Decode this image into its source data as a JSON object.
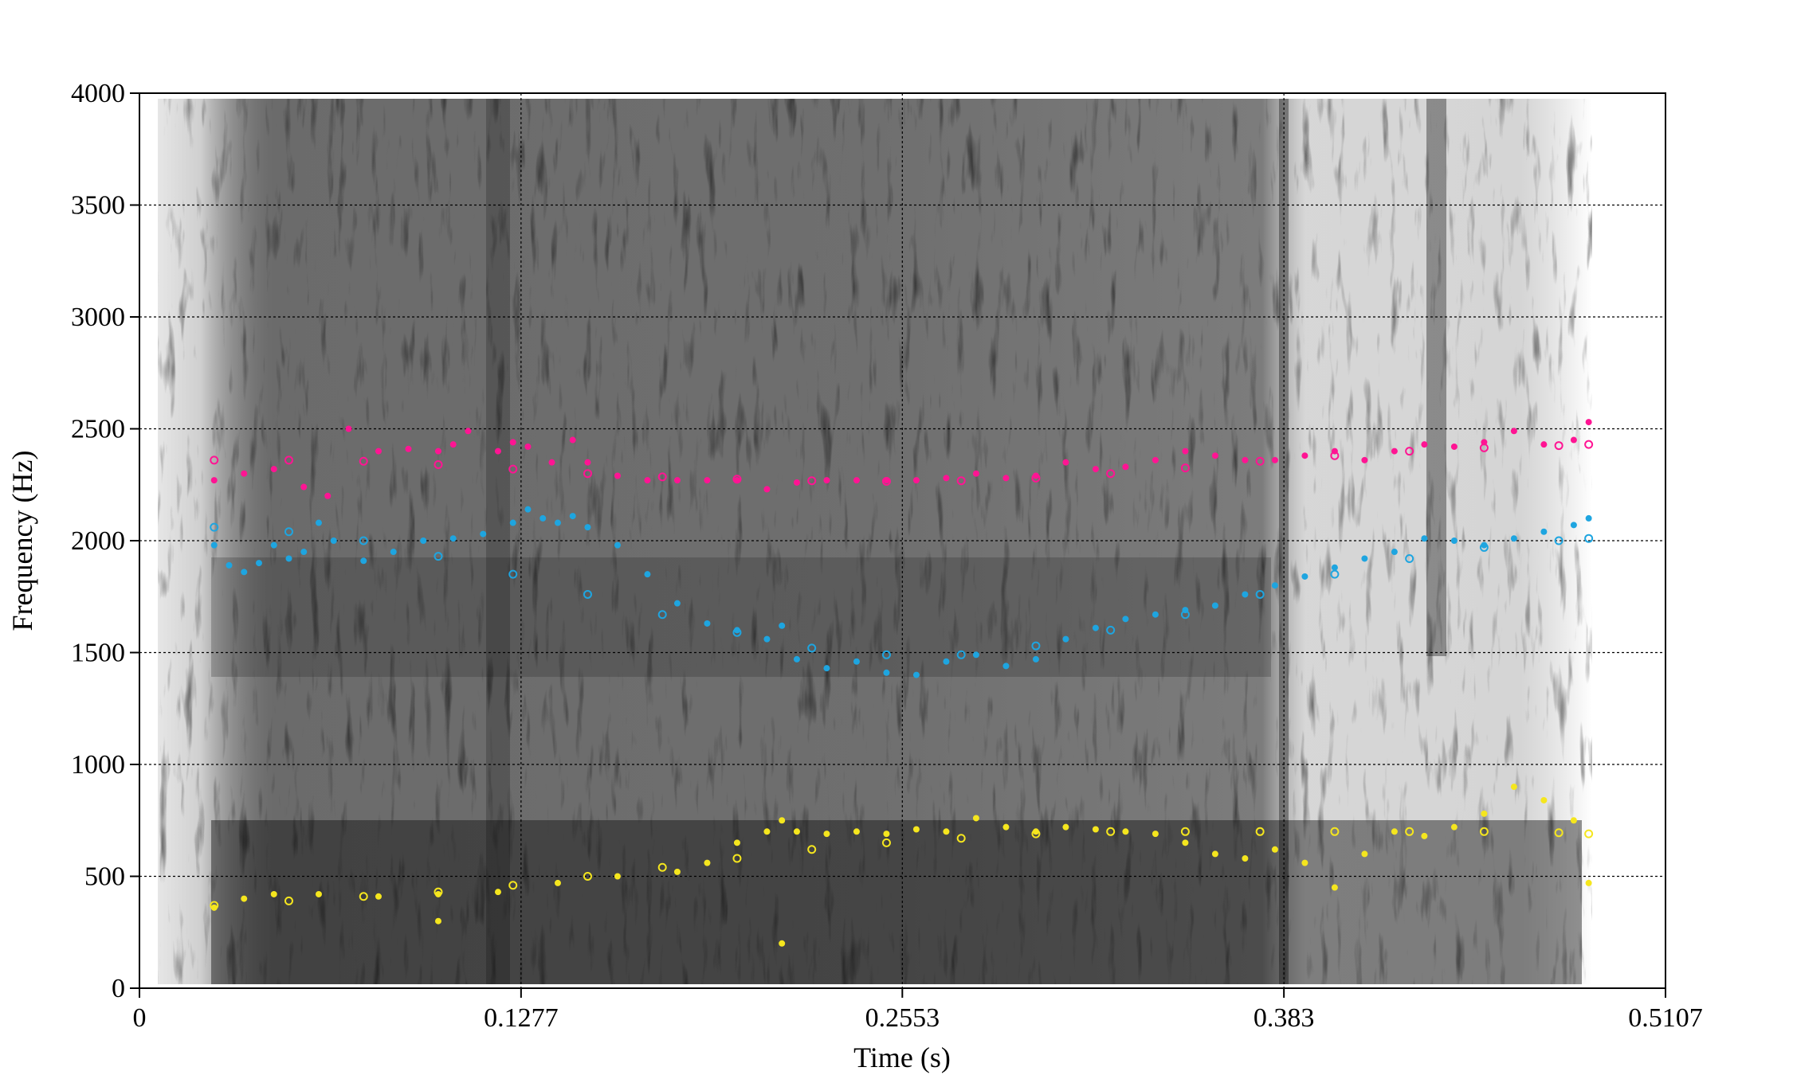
{
  "chart_data": {
    "type": "scatter",
    "title": "",
    "xlabel": "Time (s)",
    "ylabel": "Frequency (Hz)",
    "xlim": [
      0,
      0.5107
    ],
    "ylim": [
      0,
      4000
    ],
    "x_ticks": [
      "0",
      "0.1277",
      "0.2553",
      "0.383",
      "0.5107"
    ],
    "y_ticks": [
      "0",
      "500",
      "1000",
      "1500",
      "2000",
      "2500",
      "3000",
      "3500",
      "4000"
    ],
    "grid": true,
    "background": "grayscale spectrogram",
    "series": [
      {
        "color": "#ff1493",
        "style": "filled-dots",
        "x": [
          0.025,
          0.035,
          0.045,
          0.055,
          0.063,
          0.07,
          0.08,
          0.09,
          0.1,
          0.105,
          0.11,
          0.12,
          0.125,
          0.13,
          0.138,
          0.145,
          0.15,
          0.16,
          0.17,
          0.18,
          0.19,
          0.2,
          0.21,
          0.22,
          0.23,
          0.24,
          0.25,
          0.26,
          0.27,
          0.28,
          0.29,
          0.3,
          0.31,
          0.32,
          0.33,
          0.34,
          0.35,
          0.36,
          0.37,
          0.38,
          0.39,
          0.4,
          0.41,
          0.42,
          0.43,
          0.44,
          0.45,
          0.46,
          0.47,
          0.48,
          0.485
        ],
        "y": [
          2270,
          2300,
          2320,
          2240,
          2200,
          2500,
          2400,
          2410,
          2400,
          2430,
          2490,
          2400,
          2440,
          2420,
          2350,
          2450,
          2350,
          2290,
          2270,
          2270,
          2270,
          2270,
          2230,
          2260,
          2270,
          2270,
          2270,
          2270,
          2280,
          2300,
          2280,
          2290,
          2350,
          2320,
          2330,
          2360,
          2400,
          2380,
          2360,
          2360,
          2380,
          2400,
          2360,
          2400,
          2430,
          2420,
          2440,
          2490,
          2430,
          2450,
          2530
        ]
      },
      {
        "color": "#ff1493",
        "style": "open-circles",
        "x": [
          0.025,
          0.05,
          0.075,
          0.1,
          0.125,
          0.15,
          0.175,
          0.2,
          0.225,
          0.25,
          0.275,
          0.3,
          0.325,
          0.35,
          0.375,
          0.4,
          0.425,
          0.45,
          0.475,
          0.485
        ],
        "y": [
          2360,
          2360,
          2355,
          2340,
          2320,
          2300,
          2285,
          2275,
          2268,
          2265,
          2268,
          2280,
          2300,
          2325,
          2355,
          2380,
          2400,
          2415,
          2425,
          2430
        ]
      },
      {
        "color": "#1ea5e0",
        "style": "filled-dots",
        "x": [
          0.025,
          0.03,
          0.035,
          0.04,
          0.045,
          0.05,
          0.055,
          0.06,
          0.065,
          0.075,
          0.085,
          0.095,
          0.105,
          0.115,
          0.125,
          0.13,
          0.135,
          0.14,
          0.145,
          0.15,
          0.16,
          0.17,
          0.18,
          0.19,
          0.2,
          0.21,
          0.215,
          0.22,
          0.23,
          0.24,
          0.25,
          0.26,
          0.27,
          0.28,
          0.29,
          0.3,
          0.31,
          0.32,
          0.33,
          0.34,
          0.35,
          0.36,
          0.37,
          0.38,
          0.39,
          0.4,
          0.41,
          0.42,
          0.43,
          0.44,
          0.45,
          0.46,
          0.47,
          0.48,
          0.485
        ],
        "y": [
          1980,
          1890,
          1860,
          1900,
          1980,
          1920,
          1950,
          2080,
          2000,
          1910,
          1950,
          2000,
          2010,
          2030,
          2080,
          2140,
          2100,
          2080,
          2110,
          2060,
          1980,
          1850,
          1720,
          1630,
          1600,
          1560,
          1620,
          1470,
          1430,
          1460,
          1410,
          1400,
          1460,
          1490,
          1440,
          1470,
          1560,
          1610,
          1650,
          1670,
          1690,
          1710,
          1760,
          1800,
          1840,
          1880,
          1920,
          1950,
          2010,
          2000,
          1980,
          2010,
          2040,
          2070,
          2100
        ]
      },
      {
        "color": "#1ea5e0",
        "style": "open-circles",
        "x": [
          0.025,
          0.05,
          0.075,
          0.1,
          0.125,
          0.15,
          0.175,
          0.2,
          0.225,
          0.25,
          0.275,
          0.3,
          0.325,
          0.35,
          0.375,
          0.4,
          0.425,
          0.45,
          0.475,
          0.485
        ],
        "y": [
          2060,
          2040,
          2000,
          1930,
          1850,
          1760,
          1670,
          1590,
          1520,
          1490,
          1490,
          1530,
          1600,
          1670,
          1760,
          1850,
          1920,
          1970,
          2000,
          2010
        ]
      },
      {
        "color": "#f5e61e",
        "style": "filled-dots",
        "x": [
          0.025,
          0.035,
          0.045,
          0.06,
          0.08,
          0.1,
          0.12,
          0.14,
          0.16,
          0.18,
          0.19,
          0.2,
          0.21,
          0.215,
          0.22,
          0.23,
          0.24,
          0.25,
          0.26,
          0.27,
          0.28,
          0.29,
          0.3,
          0.31,
          0.32,
          0.33,
          0.34,
          0.35,
          0.36,
          0.37,
          0.38,
          0.39,
          0.4,
          0.41,
          0.42,
          0.43,
          0.44,
          0.45,
          0.46,
          0.47,
          0.48,
          0.485,
          0.1,
          0.215
        ],
        "y": [
          360,
          400,
          420,
          420,
          410,
          420,
          430,
          470,
          500,
          520,
          560,
          650,
          700,
          750,
          700,
          690,
          700,
          690,
          710,
          700,
          760,
          720,
          700,
          720,
          710,
          700,
          690,
          650,
          600,
          580,
          620,
          560,
          450,
          600,
          700,
          680,
          720,
          780,
          900,
          840,
          750,
          470,
          300,
          200
        ]
      },
      {
        "color": "#f5e61e",
        "style": "open-circles",
        "x": [
          0.025,
          0.05,
          0.075,
          0.1,
          0.125,
          0.15,
          0.175,
          0.2,
          0.225,
          0.25,
          0.275,
          0.3,
          0.325,
          0.35,
          0.375,
          0.4,
          0.425,
          0.45,
          0.475,
          0.485
        ],
        "y": [
          370,
          390,
          410,
          430,
          460,
          500,
          540,
          580,
          620,
          650,
          670,
          690,
          700,
          700,
          700,
          700,
          700,
          700,
          695,
          690
        ]
      }
    ]
  }
}
